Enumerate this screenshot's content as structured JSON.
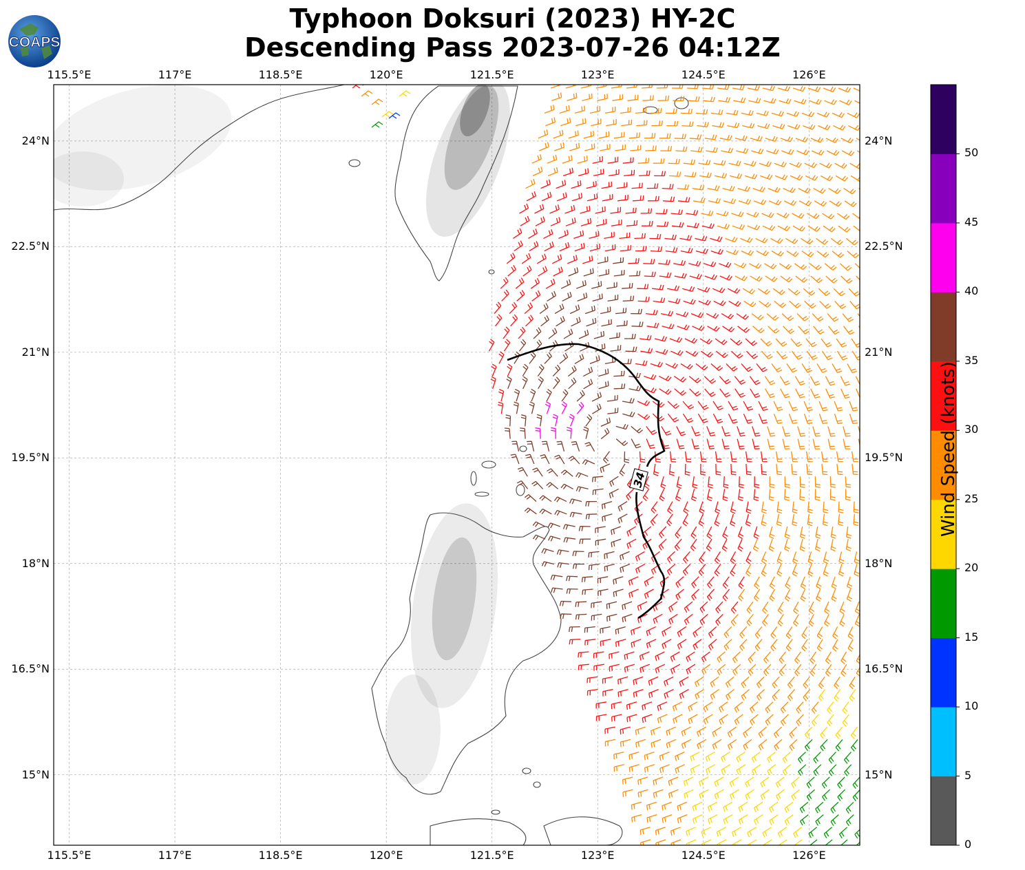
{
  "title": {
    "line1": "Typhoon Doksuri (2023) HY-2C",
    "line2": "Descending Pass 2023-07-26 04:12Z"
  },
  "logo": {
    "text": "COAPS",
    "icon": "globe-icon"
  },
  "map": {
    "type": "wind-barb-scatterometer",
    "lon_range": [
      115.28,
      126.72
    ],
    "lat_range": [
      14.0,
      24.8
    ],
    "lon_ticks": [
      "115.5°E",
      "117°E",
      "118.5°E",
      "120°E",
      "121.5°E",
      "123°E",
      "124.5°E",
      "126°E"
    ],
    "lat_ticks": [
      "24°N",
      "22.5°N",
      "21°N",
      "19.5°N",
      "18°N",
      "16.5°N",
      "15°N"
    ],
    "contour_label": "34",
    "grid": true,
    "land_color": "#ffffff",
    "coast_color": "#444444"
  },
  "colorbar": {
    "label": "Wind Speed (knots)",
    "ticks": [
      "0",
      "5",
      "10",
      "15",
      "20",
      "25",
      "30",
      "35",
      "40",
      "45",
      "50"
    ],
    "colors": [
      "#595959",
      "#00bfff",
      "#0033ff",
      "#009900",
      "#ffd700",
      "#ff8c00",
      "#ff1010",
      "#803c28",
      "#ff00ee",
      "#8800bb",
      "#2e0060"
    ]
  }
}
